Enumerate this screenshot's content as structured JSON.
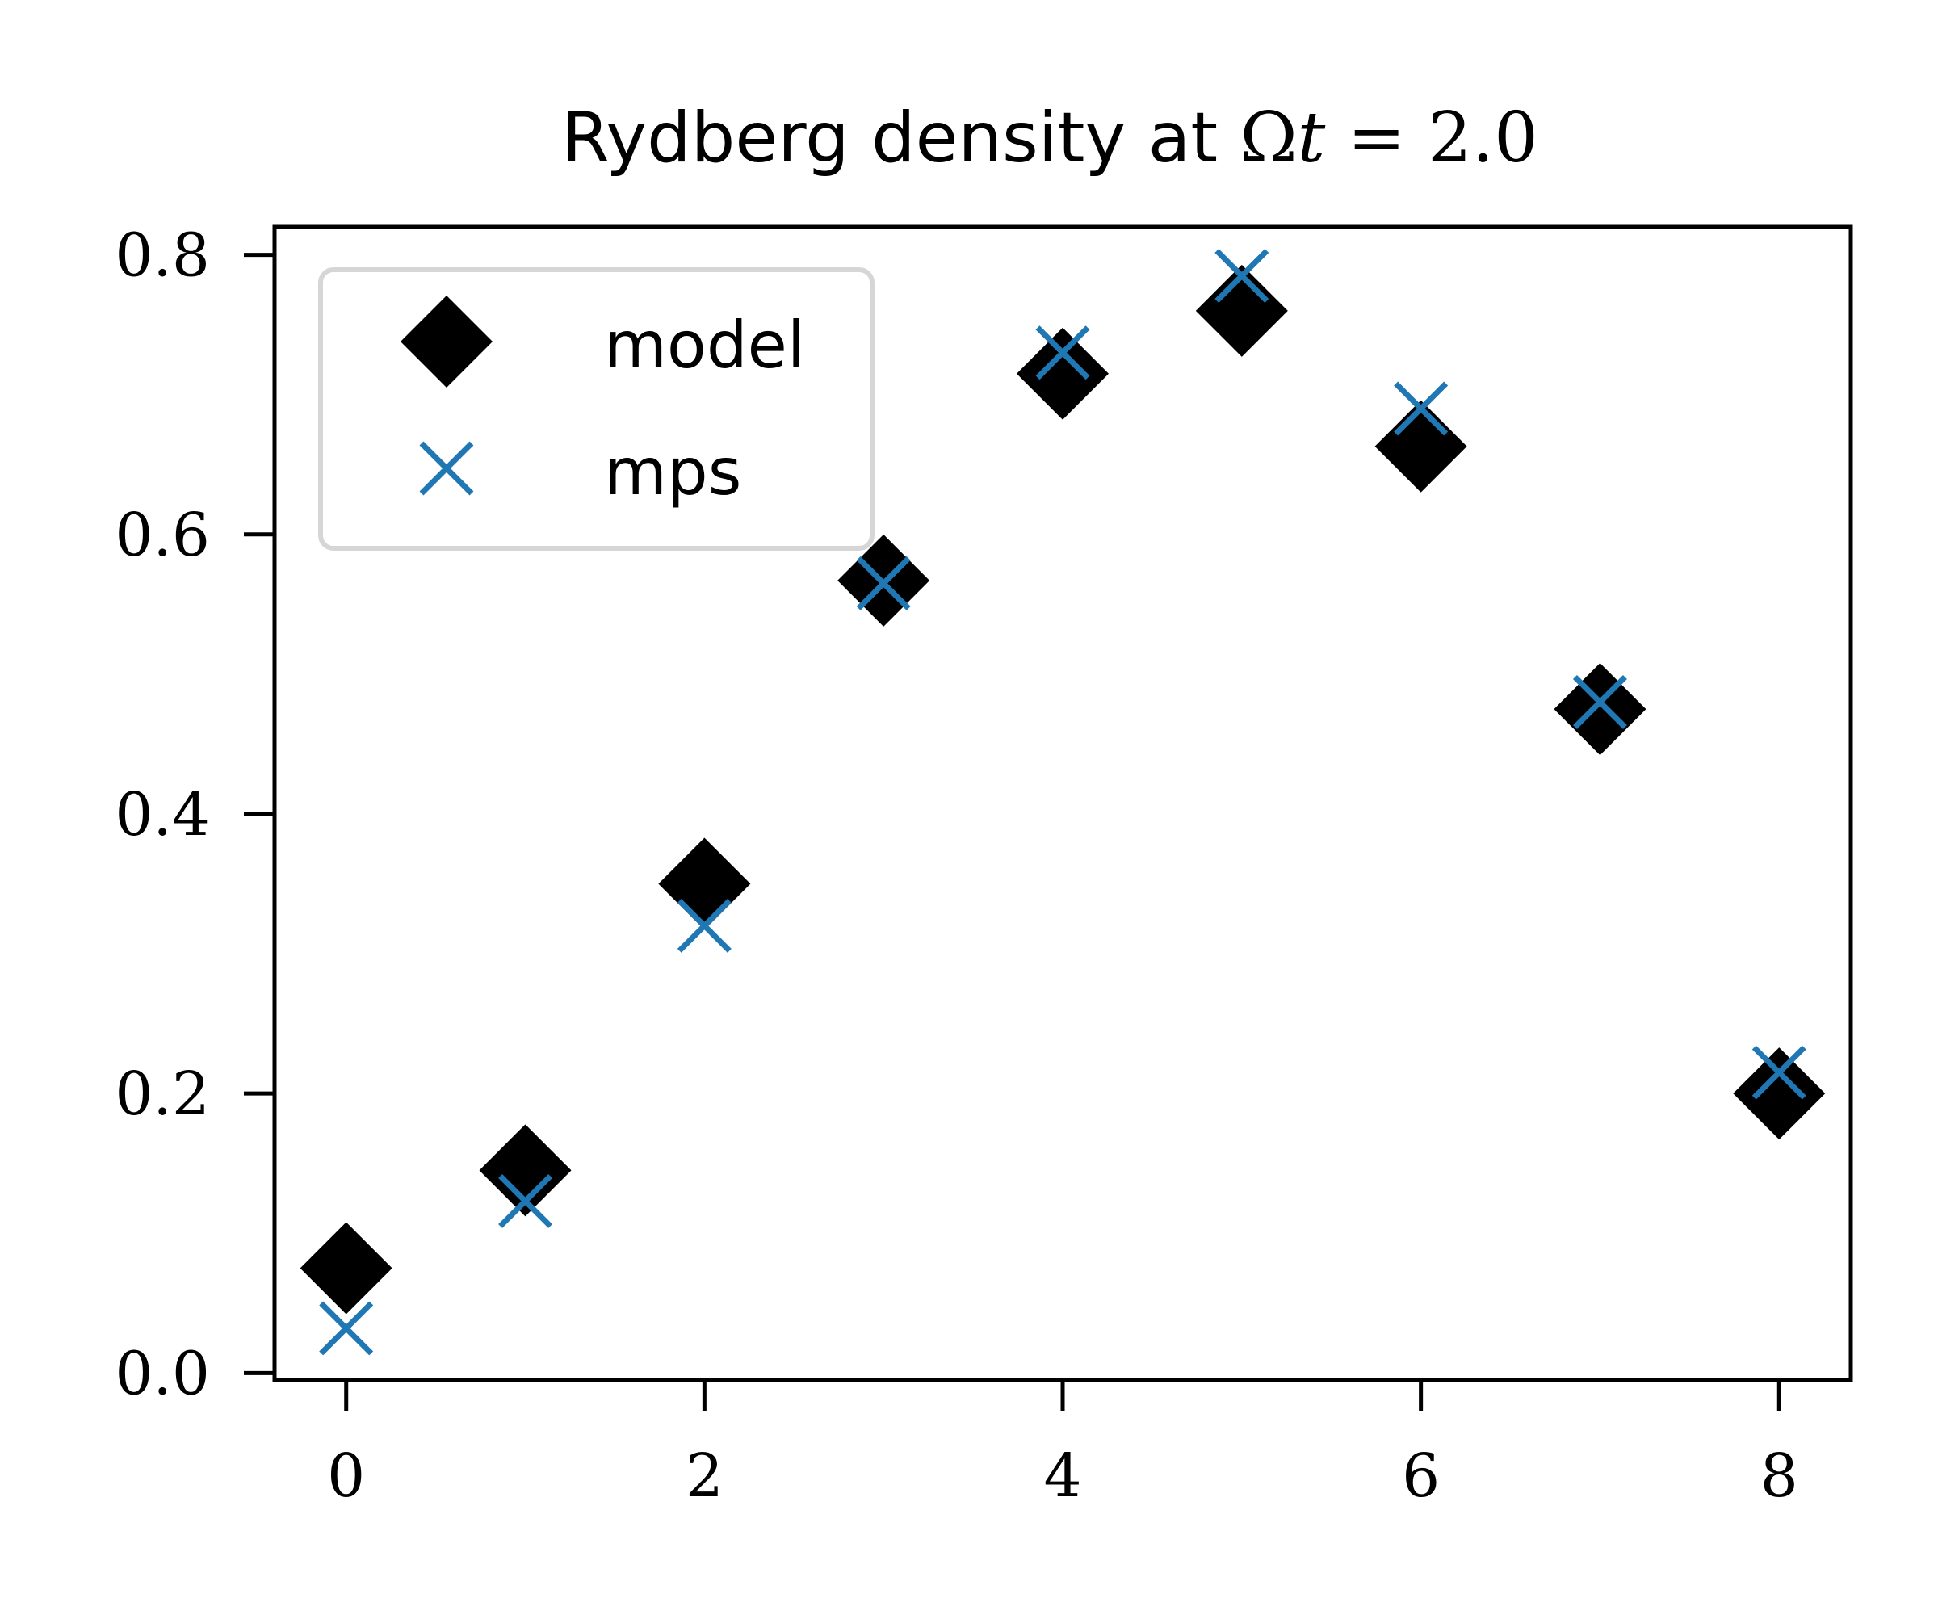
{
  "chart_data": {
    "type": "scatter",
    "title": {
      "prefix": "Rydberg density at ",
      "math_symbol": "Ω",
      "math_var": "t",
      "math_rest": " = 2.0"
    },
    "xlabel": "",
    "ylabel": "",
    "xlim": [
      -0.4,
      8.4
    ],
    "ylim": [
      -0.005,
      0.82
    ],
    "x_ticks": [
      0,
      2,
      4,
      6,
      8
    ],
    "y_ticks": [
      0.0,
      0.2,
      0.4,
      0.6,
      0.8
    ],
    "x_tick_labels": [
      "0",
      "2",
      "4",
      "6",
      "8"
    ],
    "y_tick_labels": [
      "0.0",
      "0.2",
      "0.4",
      "0.6",
      "0.8"
    ],
    "grid": false,
    "legend_position": "top-left",
    "series": [
      {
        "name": "model",
        "marker": "diamond",
        "color": "#000000",
        "x": [
          0,
          1,
          2,
          3,
          4,
          5,
          6,
          7,
          8
        ],
        "y": [
          0.075,
          0.145,
          0.35,
          0.567,
          0.715,
          0.76,
          0.663,
          0.475,
          0.2
        ]
      },
      {
        "name": "mps",
        "marker": "x",
        "color": "#1f77b4",
        "x": [
          0,
          1,
          2,
          3,
          4,
          5,
          6,
          7,
          8
        ],
        "y": [
          0.032,
          0.123,
          0.32,
          0.565,
          0.73,
          0.785,
          0.69,
          0.48,
          0.215
        ]
      }
    ]
  }
}
